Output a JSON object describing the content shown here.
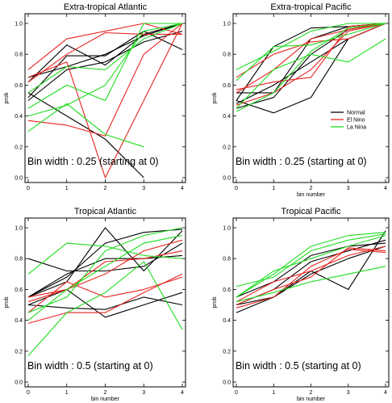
{
  "colors": {
    "Normal": "#000000",
    "El Nino": "#e8231f",
    "La Nina": "#1fdc1f"
  },
  "chart_data": [
    {
      "type": "line",
      "title": "Extra-tropical Atlantic",
      "xlabel": "",
      "ylabel": "prob",
      "xlim": [
        0,
        4
      ],
      "ylim": [
        0,
        1
      ],
      "xticks": [
        "0",
        "1",
        "2",
        "3",
        "4"
      ],
      "yticks": [
        "0.0",
        "0.2",
        "0.4",
        "0.6",
        "0.8",
        "1.0"
      ],
      "annotation": "Bin width : 0.25 (starting at 0)",
      "legend": null,
      "x": [
        0,
        1,
        2,
        3,
        4
      ],
      "series": [
        {
          "group": "Normal",
          "values": [
            0.52,
            0.79,
            0.79,
            0.95,
            0.83
          ]
        },
        {
          "group": "Normal",
          "values": [
            0.62,
            0.86,
            0.73,
            0.93,
            1.0
          ]
        },
        {
          "group": "Normal",
          "values": [
            0.55,
            0.4,
            0.25,
            0.0,
            null
          ]
        },
        {
          "group": "Normal",
          "values": [
            0.5,
            0.7,
            0.75,
            0.88,
            0.95
          ]
        },
        {
          "group": "Normal",
          "values": [
            0.65,
            0.72,
            0.8,
            0.92,
            1.0
          ]
        },
        {
          "group": "El Nino",
          "values": [
            0.7,
            0.9,
            0.95,
            1.0,
            0.93
          ]
        },
        {
          "group": "El Nino",
          "values": [
            0.62,
            0.8,
            0.94,
            0.93,
            0.93
          ]
        },
        {
          "group": "El Nino",
          "values": [
            0.37,
            0.34,
            0.27,
            0.8,
            1.0
          ]
        },
        {
          "group": "El Nino",
          "values": [
            0.65,
            0.75,
            0.0,
            0.5,
            1.0
          ]
        },
        {
          "group": "La Nina",
          "values": [
            0.4,
            0.47,
            0.6,
            0.95,
            1.0
          ]
        },
        {
          "group": "La Nina",
          "values": [
            0.55,
            0.72,
            0.7,
            0.9,
            1.0
          ]
        },
        {
          "group": "La Nina",
          "values": [
            0.45,
            0.6,
            0.5,
            1.0,
            1.0
          ]
        },
        {
          "group": "La Nina",
          "values": [
            0.3,
            0.48,
            0.28,
            0.2,
            null
          ]
        }
      ]
    },
    {
      "type": "line",
      "title": "Extra-tropical Pacific",
      "xlabel": "bin number",
      "ylabel": "prob",
      "xlim": [
        0,
        4
      ],
      "ylim": [
        0,
        1
      ],
      "xticks": [
        "0",
        "1",
        "2",
        "3",
        "4"
      ],
      "yticks": [
        "0.0",
        "0.2",
        "0.4",
        "0.6",
        "0.8",
        "1.0"
      ],
      "annotation": "Bin width : 0.25 (starting at 0)",
      "legend": [
        "Normal",
        "El Nino",
        "La Nina"
      ],
      "x": [
        0,
        1,
        2,
        3,
        4
      ],
      "series": [
        {
          "group": "Normal",
          "values": [
            0.5,
            0.42,
            0.52,
            0.9,
            1.0
          ]
        },
        {
          "group": "Normal",
          "values": [
            0.5,
            0.85,
            0.97,
            0.98,
            1.0
          ]
        },
        {
          "group": "Normal",
          "values": [
            0.55,
            0.55,
            0.9,
            0.98,
            1.0
          ]
        },
        {
          "group": "Normal",
          "values": [
            0.45,
            0.52,
            0.8,
            0.96,
            1.0
          ]
        },
        {
          "group": "Normal",
          "values": [
            0.48,
            0.6,
            0.75,
            0.9,
            1.0
          ]
        },
        {
          "group": "El Nino",
          "values": [
            0.57,
            0.62,
            0.65,
            0.98,
            1.0
          ]
        },
        {
          "group": "El Nino",
          "values": [
            0.55,
            0.7,
            0.9,
            0.96,
            1.0
          ]
        },
        {
          "group": "El Nino",
          "values": [
            0.65,
            0.8,
            0.88,
            0.9,
            1.0
          ]
        },
        {
          "group": "El Nino",
          "values": [
            0.47,
            0.55,
            0.7,
            0.95,
            1.0
          ]
        },
        {
          "group": "La Nina",
          "values": [
            0.7,
            0.82,
            0.95,
            1.0,
            1.0
          ]
        },
        {
          "group": "La Nina",
          "values": [
            0.43,
            0.55,
            0.82,
            0.97,
            1.0
          ]
        },
        {
          "group": "La Nina",
          "values": [
            0.45,
            0.7,
            0.8,
            0.75,
            0.9
          ]
        },
        {
          "group": "La Nina",
          "values": [
            0.63,
            0.85,
            0.86,
            0.93,
            1.0
          ]
        }
      ]
    },
    {
      "type": "line",
      "title": "Tropical Atlantic",
      "xlabel": "bin number",
      "ylabel": "prob",
      "xlim": [
        0,
        4
      ],
      "ylim": [
        0,
        1
      ],
      "xticks": [
        "0",
        "1",
        "2",
        "3",
        "4"
      ],
      "yticks": [
        "0.0",
        "0.2",
        "0.4",
        "0.6",
        "0.8",
        "1.0"
      ],
      "annotation": "Bin width : 0.5 (starting at 0)",
      "legend": null,
      "x": [
        0,
        1,
        2,
        3,
        4
      ],
      "series": [
        {
          "group": "Normal",
          "values": [
            0.8,
            0.72,
            0.72,
            0.75,
            0.9
          ]
        },
        {
          "group": "Normal",
          "values": [
            0.55,
            0.68,
            0.9,
            0.97,
            0.99
          ]
        },
        {
          "group": "Normal",
          "values": [
            0.5,
            0.48,
            0.47,
            0.55,
            0.5
          ]
        },
        {
          "group": "Normal",
          "values": [
            0.5,
            0.6,
            0.42,
            0.5,
            0.58
          ]
        },
        {
          "group": "Normal",
          "values": [
            0.55,
            0.65,
            1.0,
            0.72,
            0.98
          ]
        },
        {
          "group": "Normal",
          "values": [
            0.55,
            0.7,
            0.8,
            0.8,
            0.82
          ]
        },
        {
          "group": "El Nino",
          "values": [
            0.52,
            0.6,
            0.78,
            0.8,
            0.85
          ]
        },
        {
          "group": "El Nino",
          "values": [
            0.55,
            0.6,
            0.7,
            0.85,
            0.92
          ]
        },
        {
          "group": "El Nino",
          "values": [
            0.45,
            0.65,
            0.55,
            0.6,
            0.68
          ]
        },
        {
          "group": "El Nino",
          "values": [
            0.38,
            0.45,
            0.45,
            0.58,
            0.7
          ]
        },
        {
          "group": "La Nina",
          "values": [
            0.17,
            0.45,
            0.58,
            0.78,
            0.34
          ]
        },
        {
          "group": "La Nina",
          "values": [
            0.7,
            0.9,
            0.88,
            0.82,
            0.8
          ]
        },
        {
          "group": "La Nina",
          "values": [
            0.45,
            0.55,
            0.85,
            0.95,
            1.0
          ]
        },
        {
          "group": "La Nina",
          "values": [
            0.4,
            0.6,
            0.75,
            0.9,
            0.95
          ]
        }
      ]
    },
    {
      "type": "line",
      "title": "Tropical Pacific",
      "xlabel": "bin number",
      "ylabel": "prob",
      "xlim": [
        0,
        4
      ],
      "ylim": [
        0,
        1
      ],
      "xticks": [
        "0",
        "1",
        "2",
        "3",
        "4"
      ],
      "yticks": [
        "0.0",
        "0.2",
        "0.4",
        "0.6",
        "0.8",
        "1.0"
      ],
      "annotation": "Bin width : 0.5 (starting at 0)",
      "legend": null,
      "x": [
        0,
        1,
        2,
        3,
        4
      ],
      "series": [
        {
          "group": "Normal",
          "values": [
            0.45,
            0.55,
            0.72,
            0.6,
            0.98
          ]
        },
        {
          "group": "Normal",
          "values": [
            0.5,
            0.6,
            0.78,
            0.85,
            0.92
          ]
        },
        {
          "group": "Normal",
          "values": [
            0.55,
            0.65,
            0.82,
            0.88,
            0.9
          ]
        },
        {
          "group": "Normal",
          "values": [
            0.5,
            0.55,
            0.7,
            0.8,
            0.88
          ]
        },
        {
          "group": "El Nino",
          "values": [
            0.5,
            0.6,
            0.68,
            0.87,
            0.85
          ]
        },
        {
          "group": "El Nino",
          "values": [
            0.52,
            0.65,
            0.72,
            0.82,
            0.88
          ]
        },
        {
          "group": "El Nino",
          "values": [
            0.48,
            0.55,
            0.75,
            0.86,
            0.84
          ]
        },
        {
          "group": "La Nina",
          "values": [
            0.55,
            0.7,
            0.88,
            0.95,
            0.97
          ]
        },
        {
          "group": "La Nina",
          "values": [
            0.62,
            0.68,
            0.85,
            0.92,
            0.96
          ]
        },
        {
          "group": "La Nina",
          "values": [
            0.55,
            0.72,
            0.8,
            0.88,
            0.95
          ]
        },
        {
          "group": "La Nina",
          "values": [
            0.52,
            0.58,
            0.65,
            0.7,
            0.75
          ]
        }
      ]
    }
  ]
}
